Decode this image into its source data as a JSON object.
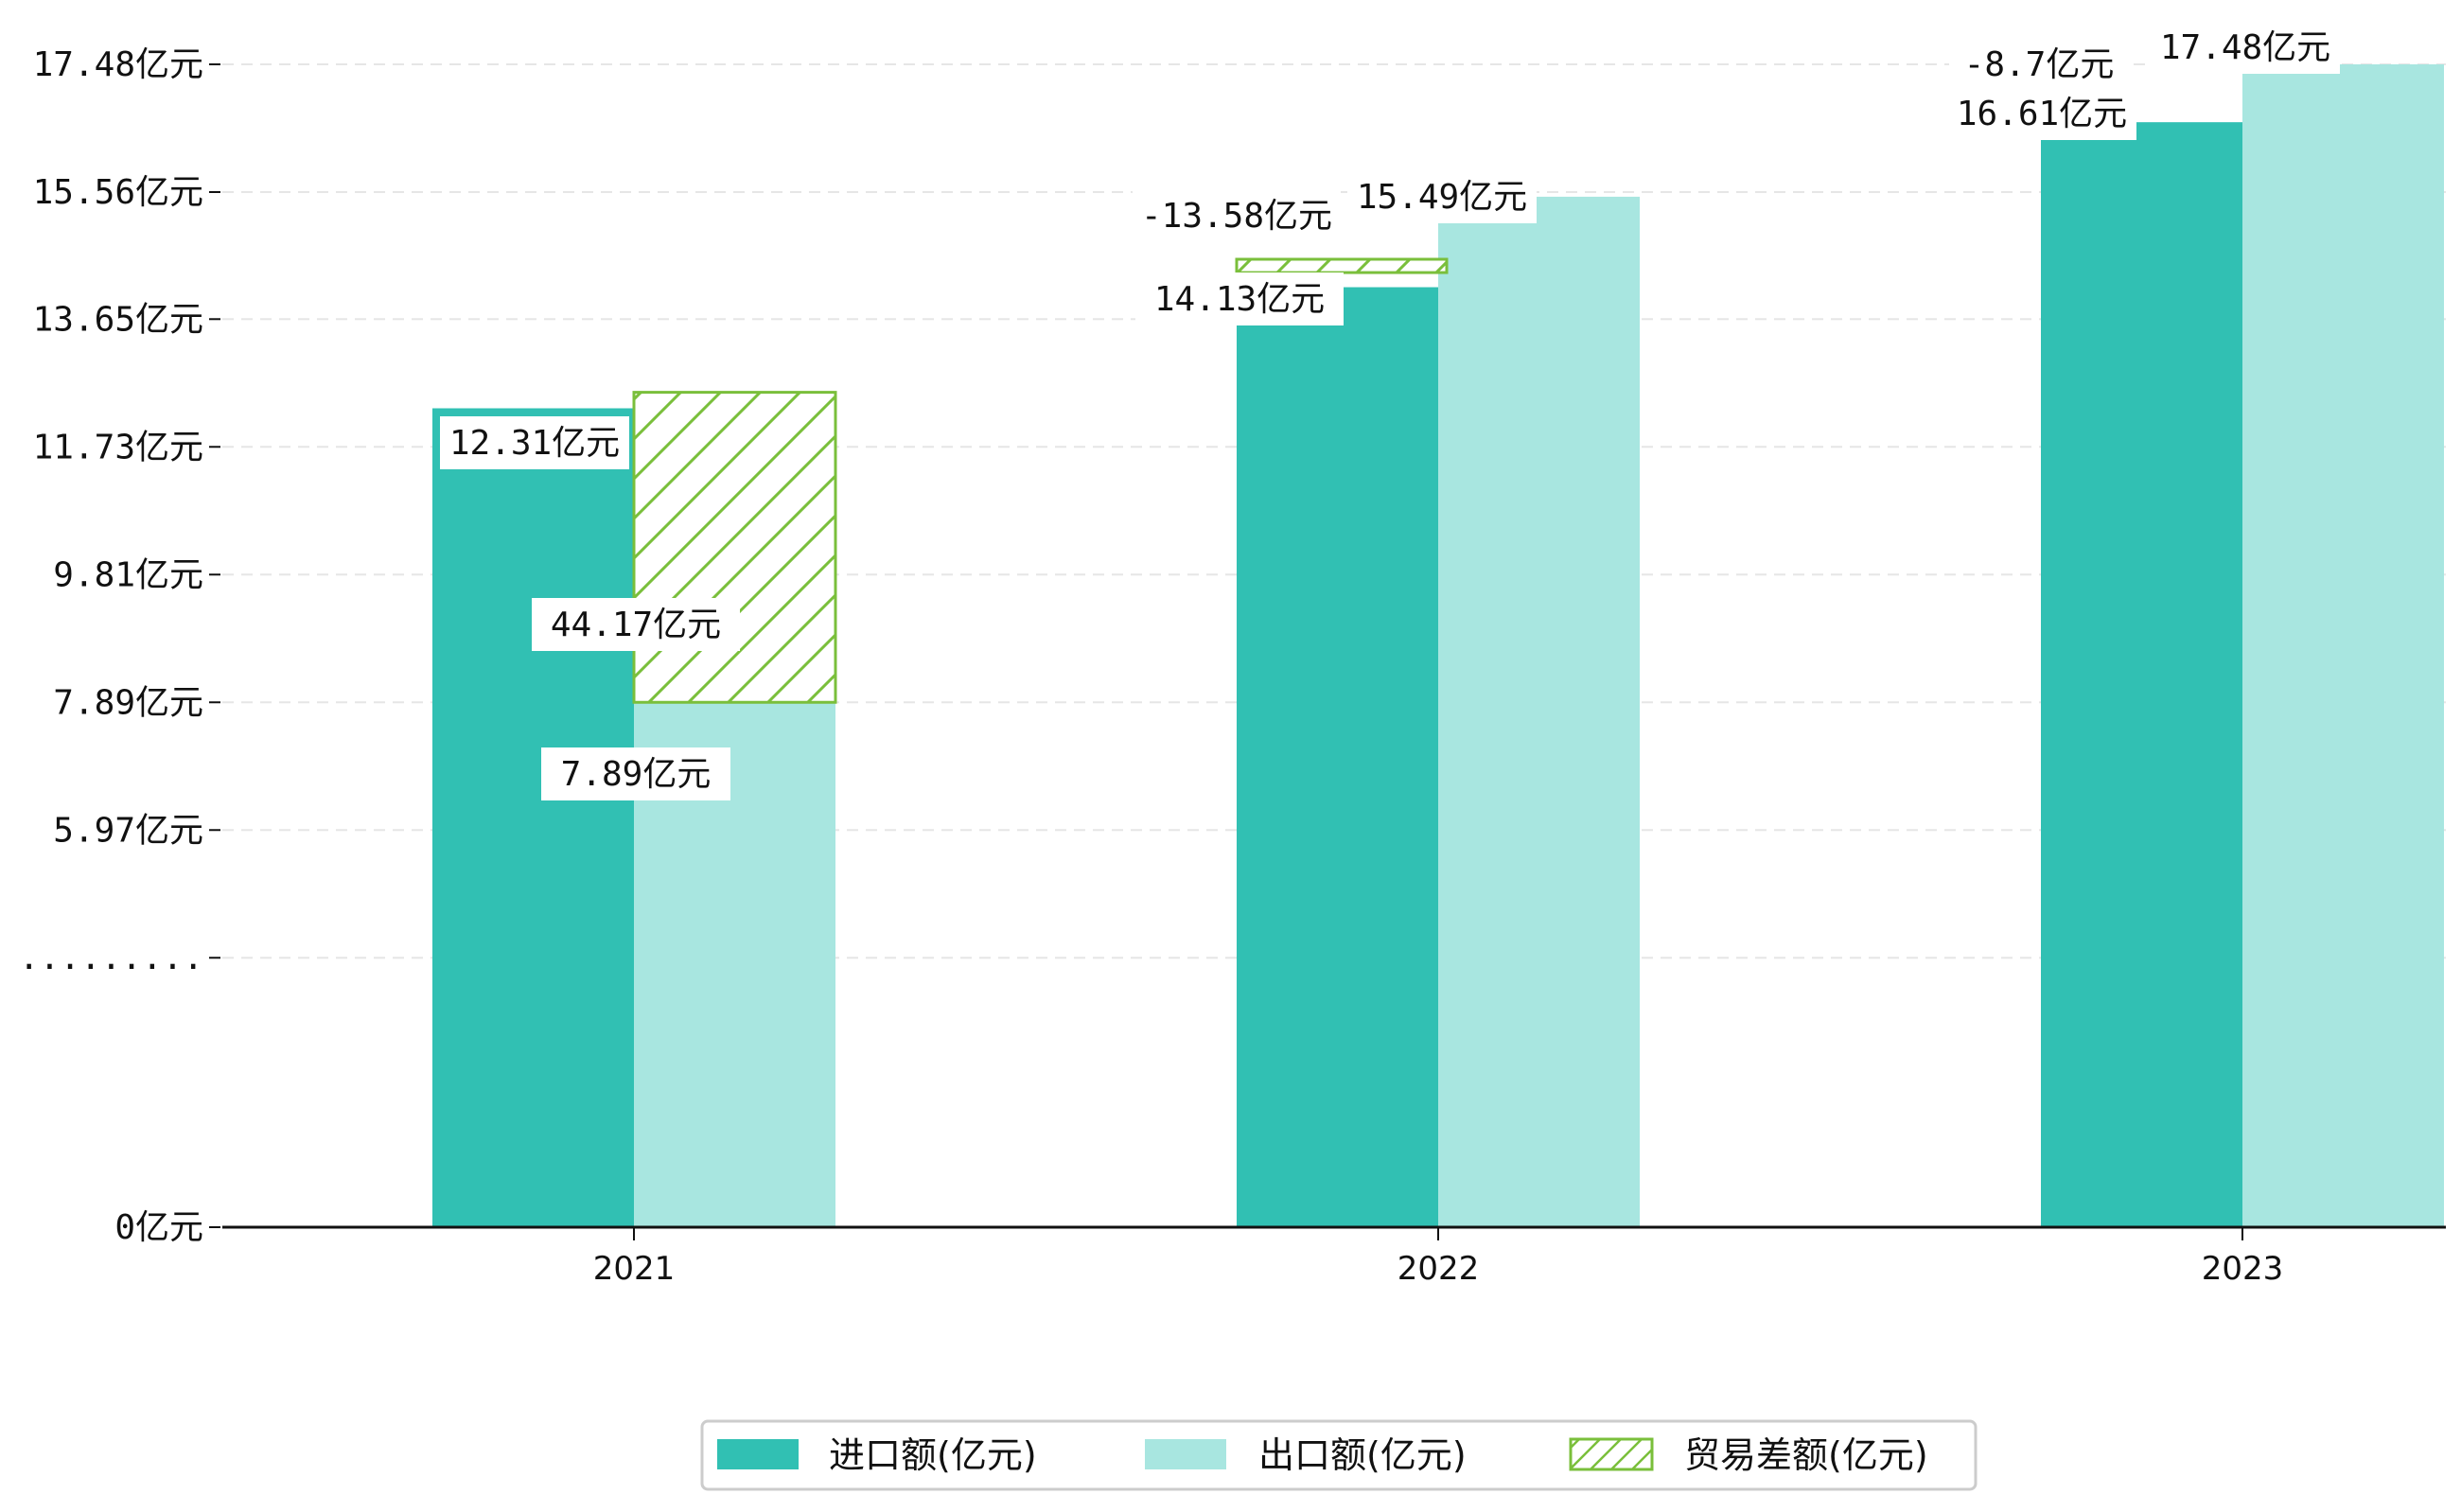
{
  "chart_data": {
    "type": "bar",
    "categories": [
      "2021",
      "2022",
      "2023"
    ],
    "series": [
      {
        "name": "进口额(亿元)",
        "values": [
          12.31,
          14.13,
          16.61
        ],
        "labels": [
          "12.31亿元",
          "14.13亿元",
          "16.61亿元"
        ],
        "color": "#31c0b3"
      },
      {
        "name": "出口额(亿元)",
        "values": [
          7.89,
          15.49,
          17.48
        ],
        "labels": [
          "7.89亿元",
          "15.49亿元",
          "17.48亿元"
        ],
        "color": "#a8e6e0"
      },
      {
        "name": "贸易差额(亿元)",
        "values": [
          44.17,
          -13.58,
          -8.7
        ],
        "labels": [
          "44.17亿元",
          "-13.58亿元",
          "-8.7亿元"
        ],
        "color": "#7abf3b",
        "style": "hatched"
      }
    ],
    "trade_balance_segments": [
      {
        "category": "2021",
        "from": 7.89,
        "to": 12.55
      },
      {
        "category": "2022",
        "from": 14.35,
        "to": 14.55
      },
      {
        "category": "2023",
        "from": 17.38,
        "to": 17.48
      }
    ],
    "y_ticks": [
      {
        "value": 0,
        "label": "0亿元"
      },
      {
        "value": 4.05,
        "label": "........."
      },
      {
        "value": 5.97,
        "label": "5.97亿元"
      },
      {
        "value": 7.89,
        "label": "7.89亿元"
      },
      {
        "value": 9.81,
        "label": "9.81亿元"
      },
      {
        "value": 11.73,
        "label": "11.73亿元"
      },
      {
        "value": 13.65,
        "label": "13.65亿元"
      },
      {
        "value": 15.56,
        "label": "15.56亿元"
      },
      {
        "value": 17.48,
        "label": "17.48亿元"
      }
    ],
    "ylim": [
      0,
      17.48
    ],
    "axis_break": true,
    "grid": true,
    "legend_position": "bottom-center",
    "title": "",
    "xlabel": "",
    "ylabel": ""
  }
}
